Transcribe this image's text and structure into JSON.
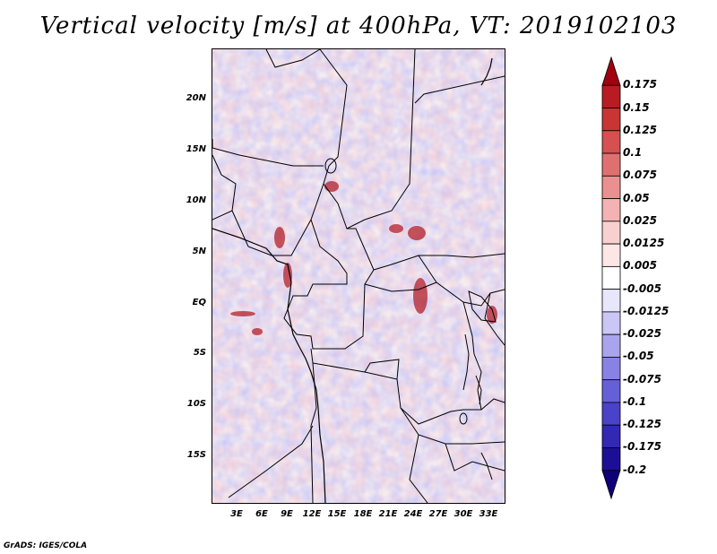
{
  "title": "Vertical velocity [m/s] at 400hPa, VT: 2019102103",
  "footer": "GrADS: IGES/COLA",
  "map": {
    "lat_labels": [
      "20N",
      "15N",
      "10N",
      "5N",
      "EQ",
      "5S",
      "10S",
      "15S"
    ],
    "lon_labels": [
      "3E",
      "6E",
      "9E",
      "12E",
      "15E",
      "18E",
      "21E",
      "24E",
      "27E",
      "30E",
      "33E"
    ]
  },
  "colorbar": {
    "labels": [
      "0.175",
      "0.15",
      "0.125",
      "0.1",
      "0.075",
      "0.05",
      "0.025",
      "0.0125",
      "0.005",
      "-0.005",
      "-0.0125",
      "-0.025",
      "-0.05",
      "-0.075",
      "-0.1",
      "-0.125",
      "-0.175",
      "-0.2"
    ],
    "colors": [
      "#a00010",
      "#b81c22",
      "#c93434",
      "#d65050",
      "#e07070",
      "#eb9090",
      "#f4b2b2",
      "#f9d0d0",
      "#fce6e6",
      "#ffffff",
      "#e8e6fb",
      "#cac6f5",
      "#aaa4ee",
      "#8882e4",
      "#6660d8",
      "#4a42c8",
      "#3228b4",
      "#1c0f96",
      "#100078"
    ]
  }
}
